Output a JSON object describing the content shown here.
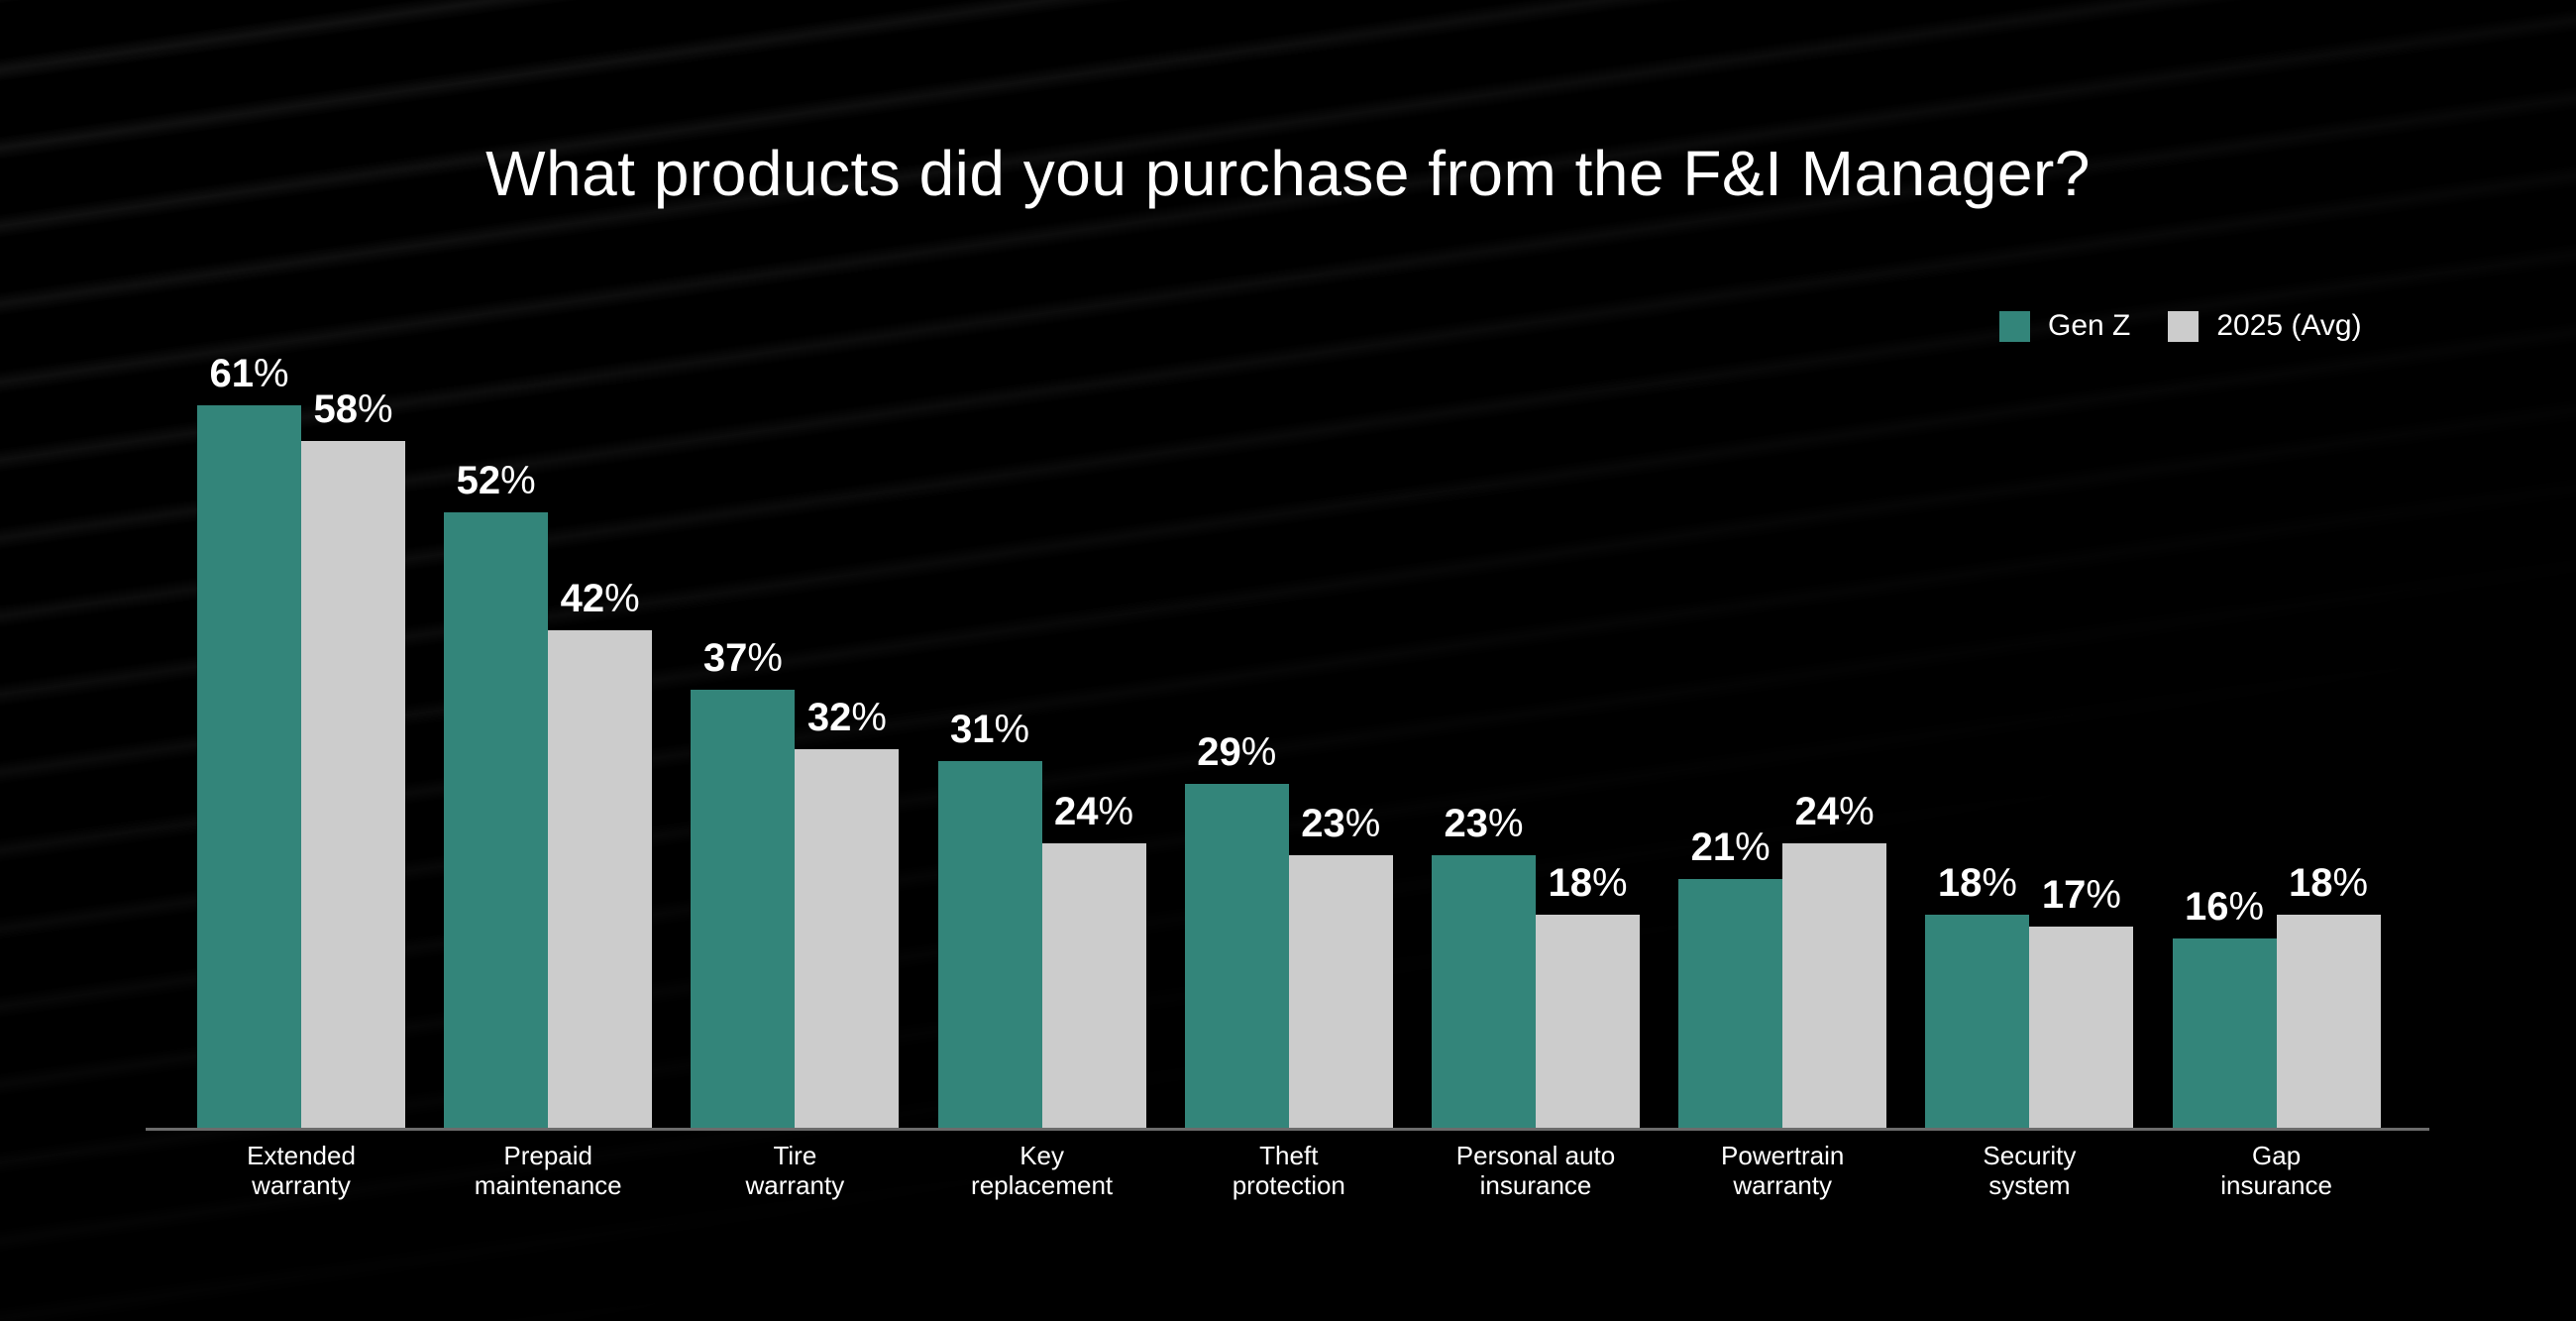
{
  "title": "What products did you purchase from the F&I Manager?",
  "legend": [
    {
      "label": "Gen Z",
      "color": "#33857A"
    },
    {
      "label": "2025 (Avg)",
      "color": "#CCCCCC"
    }
  ],
  "chart_data": {
    "type": "bar",
    "title": "What products did you purchase from the F&I Manager?",
    "xlabel": "",
    "ylabel": "",
    "ylim": [
      0,
      65
    ],
    "grid": false,
    "legend_position": "top-right",
    "value_format": "percent",
    "categories": [
      "Extended warranty",
      "Prepaid maintenance",
      "Tire warranty",
      "Key replacement",
      "Theft protection",
      "Personal auto insurance",
      "Powertrain warranty",
      "Security system",
      "Gap insurance"
    ],
    "category_lines": [
      [
        "Extended",
        "warranty"
      ],
      [
        "Prepaid",
        "maintenance"
      ],
      [
        "Tire",
        "warranty"
      ],
      [
        "Key",
        "replacement"
      ],
      [
        "Theft",
        "protection"
      ],
      [
        "Personal auto",
        "insurance"
      ],
      [
        "Powertrain",
        "warranty"
      ],
      [
        "Security",
        "system"
      ],
      [
        "Gap",
        "insurance"
      ]
    ],
    "series": [
      {
        "name": "Gen Z",
        "color": "#33857A",
        "values": [
          61,
          52,
          37,
          31,
          29,
          23,
          21,
          18,
          16
        ]
      },
      {
        "name": "2025 (Avg)",
        "color": "#CCCCCC",
        "values": [
          58,
          42,
          32,
          24,
          23,
          18,
          24,
          17,
          18
        ]
      }
    ]
  }
}
